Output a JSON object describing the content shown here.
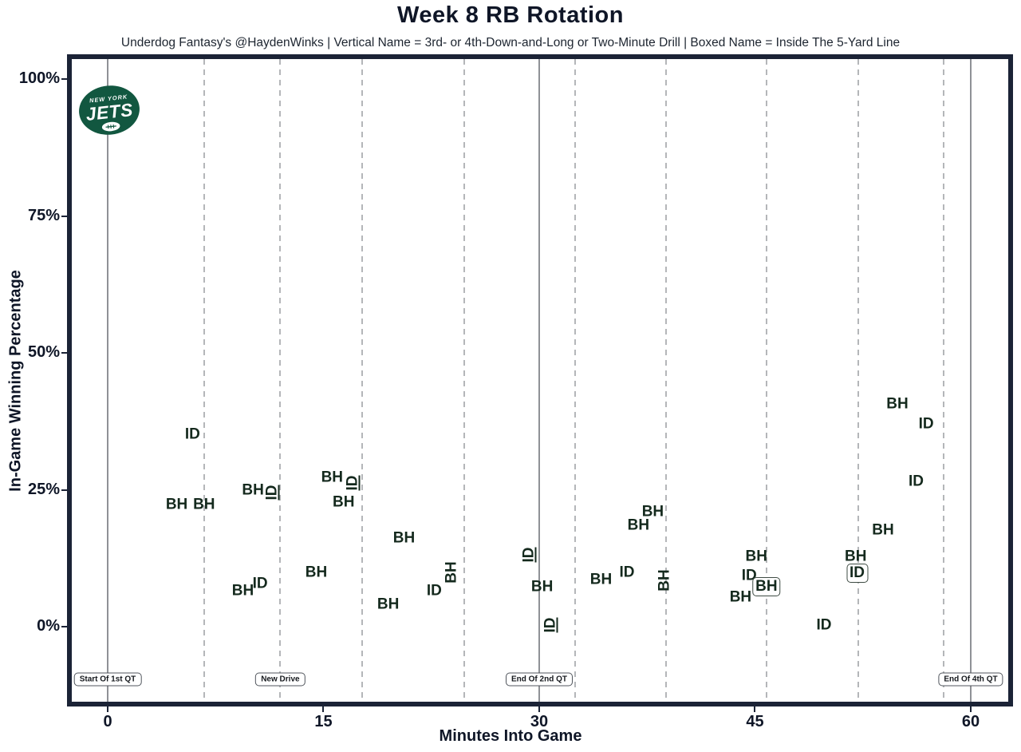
{
  "page": {
    "title": "Week 8 RB Rotation",
    "subtitle": "Underdog Fantasy's @HaydenWinks | Vertical Name = 3rd- or 4th-Down-and-Long or Two-Minute Drill | Boxed Name = Inside The 5-Yard Line"
  },
  "logo": {
    "team": "New York Jets",
    "top_text": "NEW YORK",
    "main_text": "JETS",
    "green": "#125740"
  },
  "colors": {
    "label_text": "#14291d",
    "axis_text": "#0f1627",
    "border": "#1b2336",
    "solid_gridline": "#8f9196",
    "dashed_gridline": "#b4b6b9",
    "background": "#ffffff"
  },
  "chart_data": {
    "type": "scatter",
    "title": "Week 8 RB Rotation",
    "subtitle": "Underdog Fantasy's @HaydenWinks | Vertical Name = 3rd- or 4th-Down-and-Long or Two-Minute Drill | Boxed Name = Inside The 5-Yard Line",
    "xlabel": "Minutes Into Game",
    "ylabel": "In-Game Winning Percentage",
    "xlim": [
      -2.8,
      63
    ],
    "ylim": [
      -13,
      104
    ],
    "grid": "vertical-only",
    "x_ticks": [
      {
        "value": 0,
        "label": "0"
      },
      {
        "value": 15,
        "label": "15"
      },
      {
        "value": 30,
        "label": "30"
      },
      {
        "value": 45,
        "label": "45"
      },
      {
        "value": 60,
        "label": "60"
      }
    ],
    "y_ticks": [
      {
        "value": 0,
        "label": "0%"
      },
      {
        "value": 25,
        "label": "25%"
      },
      {
        "value": 50,
        "label": "50%"
      },
      {
        "value": 75,
        "label": "75%"
      },
      {
        "value": 100,
        "label": "100%"
      }
    ],
    "solid_vlines": [
      0,
      30,
      60
    ],
    "dashed_vlines": [
      6.7,
      12.0,
      17.7,
      24.8,
      32.5,
      38.8,
      45.8,
      52.2,
      58.1
    ],
    "vline_markers": [
      {
        "x": 0,
        "label": "Start Of 1st QT"
      },
      {
        "x": 12.0,
        "label": "New Drive"
      },
      {
        "x": 30,
        "label": "End Of 2nd QT"
      },
      {
        "x": 60,
        "label": "End Of 4th QT"
      }
    ],
    "style_legend": {
      "vertical": "3rd- or 4th-Down-and-Long or Two-Minute Drill",
      "boxed": "Inside The 5-Yard Line"
    },
    "points": [
      {
        "player": "ID",
        "x": 5.9,
        "y": 35.2,
        "style": "normal"
      },
      {
        "player": "BH",
        "x": 4.8,
        "y": 22.3,
        "style": "normal"
      },
      {
        "player": "BH",
        "x": 6.7,
        "y": 22.3,
        "style": "normal"
      },
      {
        "player": "BH",
        "x": 10.1,
        "y": 24.9,
        "style": "normal"
      },
      {
        "player": "ID",
        "x": 11.4,
        "y": 24.5,
        "style": "vertical"
      },
      {
        "player": "BH",
        "x": 9.4,
        "y": 6.6,
        "style": "normal"
      },
      {
        "player": "ID",
        "x": 10.6,
        "y": 7.9,
        "style": "normal"
      },
      {
        "player": "BH",
        "x": 15.6,
        "y": 27.3,
        "style": "normal"
      },
      {
        "player": "ID",
        "x": 17.0,
        "y": 26.2,
        "style": "vertical"
      },
      {
        "player": "BH",
        "x": 16.4,
        "y": 22.7,
        "style": "normal"
      },
      {
        "player": "BH",
        "x": 14.5,
        "y": 9.9,
        "style": "normal"
      },
      {
        "player": "BH",
        "x": 20.6,
        "y": 16.2,
        "style": "normal"
      },
      {
        "player": "BH",
        "x": 19.5,
        "y": 4.1,
        "style": "normal"
      },
      {
        "player": "ID",
        "x": 22.7,
        "y": 6.6,
        "style": "normal"
      },
      {
        "player": "BH",
        "x": 23.9,
        "y": 9.9,
        "style": "vertical"
      },
      {
        "player": "ID",
        "x": 29.3,
        "y": 13.1,
        "style": "vertical"
      },
      {
        "player": "BH",
        "x": 30.2,
        "y": 7.3,
        "style": "normal"
      },
      {
        "player": "ID",
        "x": 30.8,
        "y": 0.3,
        "style": "vertical"
      },
      {
        "player": "BH",
        "x": 34.3,
        "y": 8.6,
        "style": "normal"
      },
      {
        "player": "ID",
        "x": 36.1,
        "y": 9.9,
        "style": "normal"
      },
      {
        "player": "BH",
        "x": 36.9,
        "y": 18.5,
        "style": "normal"
      },
      {
        "player": "BH",
        "x": 37.9,
        "y": 21.0,
        "style": "normal"
      },
      {
        "player": "BH",
        "x": 38.7,
        "y": 8.5,
        "style": "vertical"
      },
      {
        "player": "BH",
        "x": 45.1,
        "y": 12.8,
        "style": "normal"
      },
      {
        "player": "ID",
        "x": 44.6,
        "y": 9.3,
        "style": "normal"
      },
      {
        "player": "BH",
        "x": 45.8,
        "y": 7.3,
        "style": "boxed"
      },
      {
        "player": "BH",
        "x": 44.0,
        "y": 5.4,
        "style": "normal"
      },
      {
        "player": "BH",
        "x": 52.0,
        "y": 12.8,
        "style": "normal"
      },
      {
        "player": "ID",
        "x": 52.1,
        "y": 9.8,
        "style": "boxed"
      },
      {
        "player": "ID",
        "x": 49.8,
        "y": 0.3,
        "style": "normal"
      },
      {
        "player": "BH",
        "x": 54.9,
        "y": 40.7,
        "style": "normal"
      },
      {
        "player": "ID",
        "x": 56.9,
        "y": 37.0,
        "style": "normal"
      },
      {
        "player": "ID",
        "x": 56.2,
        "y": 26.5,
        "style": "normal"
      },
      {
        "player": "BH",
        "x": 53.9,
        "y": 17.6,
        "style": "normal"
      }
    ]
  }
}
